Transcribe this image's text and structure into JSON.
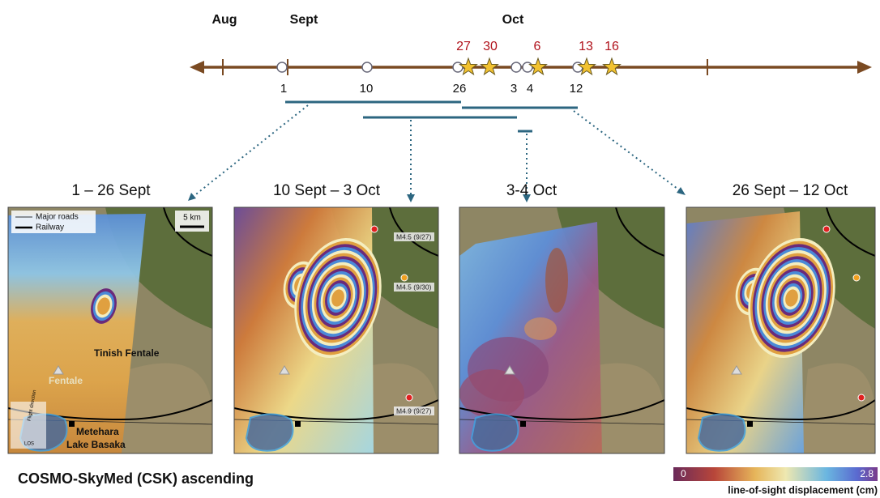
{
  "timeline": {
    "months": [
      "Aug",
      "Sept",
      "Oct"
    ],
    "acquisition_dates": [
      "1",
      "10",
      "26",
      "3",
      "4",
      "12"
    ],
    "earthquake_dates": [
      "27",
      "30",
      "6",
      "13",
      "16"
    ]
  },
  "panels": [
    {
      "title": "1 – 26 Sept",
      "labels": [
        "Tinish Fentale",
        "Fentale",
        "Metehara",
        "Lake Basaka",
        "LOS",
        "Flight direction"
      ]
    },
    {
      "title": "10 Sept – 3 Oct",
      "labels": [
        "M4.5 (9/27)",
        "M4.5 (9/30)",
        "M4.9 (9/27)"
      ]
    },
    {
      "title": "3-4 Oct"
    },
    {
      "title": "26 Sept – 12 Oct"
    }
  ],
  "legend": {
    "roads": "Major roads",
    "railway": "Railway",
    "scale": "5 km"
  },
  "footer": {
    "title": "COSMO-SkyMed (CSK) ascending"
  },
  "colorbar": {
    "min": 0,
    "max": 2.8,
    "label": "line-of-sight displacement (cm)"
  }
}
